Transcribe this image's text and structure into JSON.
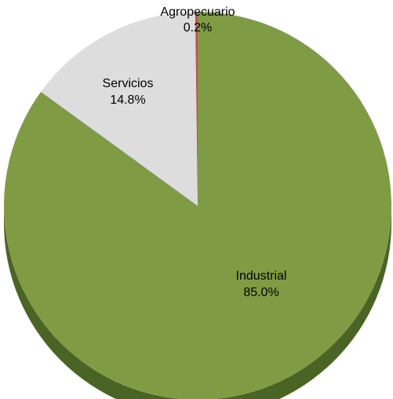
{
  "chart_data": {
    "type": "pie",
    "style": "3d",
    "slices": [
      {
        "label": "Industrial",
        "value": 85.0,
        "value_label": "85.0%",
        "color": "#7f9c45",
        "side_color": "#4a6426"
      },
      {
        "label": "Servicios",
        "value": 14.8,
        "value_label": "14.8%",
        "color": "#dddddd",
        "side_color": "#a8a8a8"
      },
      {
        "label": "Agropecuario",
        "value": 0.2,
        "value_label": "0.2%",
        "color": "#c0504d",
        "side_color": "#8a3a38"
      }
    ],
    "start_angle_deg": 0,
    "direction": "clockwise",
    "legend": "none"
  }
}
